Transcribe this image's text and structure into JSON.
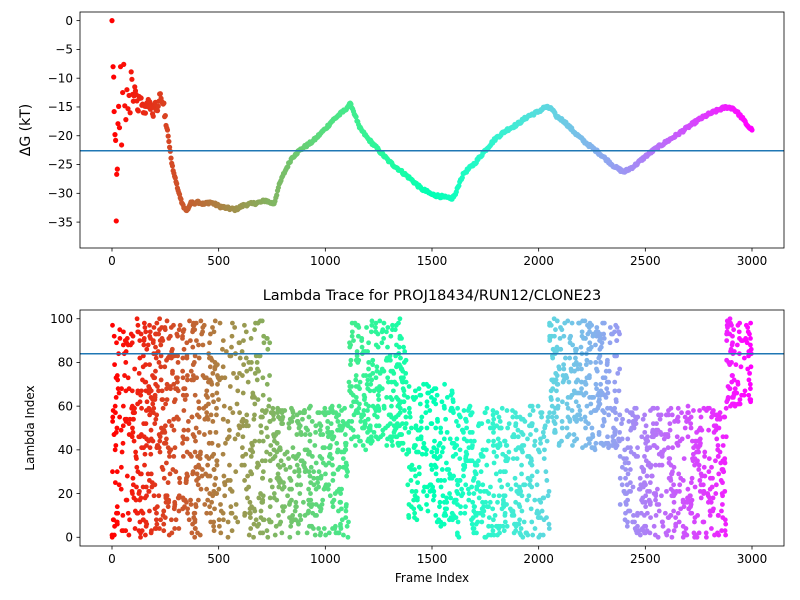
{
  "chart_data": [
    {
      "type": "scatter",
      "title": "",
      "xlabel": "",
      "ylabel": "ΔG (kT)",
      "xlim": [
        -150,
        3150
      ],
      "ylim": [
        -39.5,
        1.5
      ],
      "xticks": [
        0,
        500,
        1000,
        1500,
        2000,
        2500,
        3000
      ],
      "yticks": [
        0,
        -5,
        -10,
        -15,
        -20,
        -25,
        -30,
        -35
      ],
      "reference_line": -22.6,
      "colormap": "rainbow (red to violet as frame index increases)",
      "series": [
        {
          "points": [
            [
              0,
              0.0
            ],
            [
              5,
              -8.0
            ],
            [
              8,
              -9.8
            ],
            [
              10,
              -15.8
            ],
            [
              14,
              -19.8
            ],
            [
              17,
              -20.8
            ],
            [
              20,
              -34.8
            ],
            [
              22,
              -26.7
            ],
            [
              25,
              -25.8
            ],
            [
              28,
              -17.9
            ],
            [
              31,
              -14.9
            ],
            [
              35,
              -18.6
            ],
            [
              40,
              -8.0
            ],
            [
              45,
              -21.6
            ],
            [
              50,
              -12.5
            ],
            [
              55,
              -7.6
            ],
            [
              60,
              -14.8
            ],
            [
              65,
              -17.2
            ],
            [
              70,
              -12.0
            ],
            [
              75,
              -15.3
            ],
            [
              80,
              -13.0
            ],
            [
              85,
              -16.0
            ],
            [
              90,
              -8.9
            ],
            [
              100,
              -14.0
            ],
            [
              110,
              -12.2
            ],
            [
              120,
              -15.5
            ],
            [
              130,
              -13.5
            ],
            [
              140,
              -14.7
            ],
            [
              150,
              -16.0
            ],
            [
              160,
              -14.9
            ],
            [
              170,
              -13.7
            ],
            [
              180,
              -15.4
            ],
            [
              190,
              -16.2
            ],
            [
              200,
              -14.4
            ],
            [
              210,
              -15.6
            ],
            [
              220,
              -14.0
            ],
            [
              230,
              -13.5
            ],
            [
              240,
              -14.5
            ],
            [
              250,
              -16.5
            ],
            [
              260,
              -19.0
            ],
            [
              270,
              -22.0
            ],
            [
              280,
              -24.8
            ],
            [
              290,
              -26.5
            ],
            [
              300,
              -28.0
            ],
            [
              310,
              -29.5
            ],
            [
              320,
              -30.8
            ],
            [
              330,
              -31.8
            ],
            [
              340,
              -32.6
            ],
            [
              350,
              -33.0
            ],
            [
              360,
              -32.4
            ],
            [
              370,
              -31.5
            ],
            [
              380,
              -31.8
            ],
            [
              400,
              -31.4
            ],
            [
              430,
              -31.9
            ],
            [
              460,
              -31.5
            ],
            [
              500,
              -32.2
            ],
            [
              540,
              -32.6
            ],
            [
              580,
              -32.8
            ],
            [
              620,
              -32.0
            ],
            [
              660,
              -31.8
            ],
            [
              700,
              -31.5
            ],
            [
              720,
              -31.2
            ],
            [
              740,
              -31.6
            ],
            [
              760,
              -31.8
            ],
            [
              780,
              -29.0
            ],
            [
              800,
              -27.0
            ],
            [
              820,
              -25.5
            ],
            [
              840,
              -24.0
            ],
            [
              860,
              -23.2
            ],
            [
              880,
              -22.5
            ],
            [
              900,
              -22.0
            ],
            [
              920,
              -21.5
            ],
            [
              940,
              -21.0
            ],
            [
              960,
              -20.3
            ],
            [
              980,
              -19.5
            ],
            [
              1000,
              -18.8
            ],
            [
              1030,
              -17.5
            ],
            [
              1060,
              -16.5
            ],
            [
              1090,
              -15.6
            ],
            [
              1110,
              -14.7
            ],
            [
              1120,
              -14.5
            ],
            [
              1140,
              -16.5
            ],
            [
              1160,
              -18.6
            ],
            [
              1200,
              -20.5
            ],
            [
              1250,
              -22.5
            ],
            [
              1300,
              -24.5
            ],
            [
              1350,
              -26.0
            ],
            [
              1400,
              -27.5
            ],
            [
              1450,
              -29.2
            ],
            [
              1500,
              -30.2
            ],
            [
              1550,
              -30.6
            ],
            [
              1590,
              -31.0
            ],
            [
              1610,
              -30.2
            ],
            [
              1630,
              -28.0
            ],
            [
              1650,
              -26.5
            ],
            [
              1700,
              -24.8
            ],
            [
              1750,
              -22.5
            ],
            [
              1800,
              -20.4
            ],
            [
              1850,
              -19.0
            ],
            [
              1900,
              -18.0
            ],
            [
              1950,
              -16.6
            ],
            [
              2000,
              -15.8
            ],
            [
              2030,
              -15.0
            ],
            [
              2060,
              -15.3
            ],
            [
              2080,
              -16.5
            ],
            [
              2120,
              -17.5
            ],
            [
              2170,
              -19.5
            ],
            [
              2220,
              -21.2
            ],
            [
              2270,
              -22.6
            ],
            [
              2320,
              -24.2
            ],
            [
              2360,
              -25.5
            ],
            [
              2400,
              -26.3
            ],
            [
              2450,
              -25.2
            ],
            [
              2500,
              -23.6
            ],
            [
              2550,
              -22.2
            ],
            [
              2600,
              -21.0
            ],
            [
              2650,
              -19.8
            ],
            [
              2700,
              -18.5
            ],
            [
              2750,
              -17.2
            ],
            [
              2800,
              -16.2
            ],
            [
              2850,
              -15.4
            ],
            [
              2880,
              -15.0
            ],
            [
              2910,
              -15.2
            ],
            [
              2930,
              -15.9
            ],
            [
              2960,
              -17.2
            ],
            [
              2980,
              -18.3
            ],
            [
              3000,
              -19.0
            ]
          ]
        }
      ]
    },
    {
      "type": "scatter",
      "title": "Lambda Trace for PROJ18434/RUN12/CLONE23",
      "xlabel": "Frame Index",
      "ylabel": "Lambda Index",
      "xlim": [
        -150,
        3150
      ],
      "ylim": [
        -4,
        104
      ],
      "xticks": [
        0,
        500,
        1000,
        1500,
        2000,
        2500,
        3000
      ],
      "yticks": [
        0,
        20,
        40,
        60,
        80,
        100
      ],
      "reference_line": 84,
      "colormap": "rainbow (red to violet as frame index increases)",
      "series": [
        {
          "segments": [
            {
              "x_range": [
                0,
                90
              ],
              "y_range": [
                0,
                100
              ],
              "count": 80
            },
            {
              "x_range": [
                90,
                200
              ],
              "y_range": [
                0,
                100
              ],
              "count": 140
            },
            {
              "x_range": [
                200,
                320
              ],
              "y_range": [
                0,
                100
              ],
              "count": 150
            },
            {
              "x_range": [
                330,
                500
              ],
              "y_range": [
                0,
                100
              ],
              "count": 200
            },
            {
              "x_range": [
                500,
                740
              ],
              "y_range": [
                0,
                100
              ],
              "count": 200
            },
            {
              "x_range": [
                740,
                1110
              ],
              "y_range": [
                0,
                60
              ],
              "count": 330
            },
            {
              "x_range": [
                1110,
                1380
              ],
              "y_range": [
                40,
                100
              ],
              "count": 260
            },
            {
              "x_range": [
                1380,
                1600
              ],
              "y_range": [
                5,
                70
              ],
              "count": 180
            },
            {
              "x_range": [
                1600,
                2050
              ],
              "y_range": [
                0,
                60
              ],
              "count": 360
            },
            {
              "x_range": [
                2050,
                2380
              ],
              "y_range": [
                40,
                100
              ],
              "count": 300
            },
            {
              "x_range": [
                2380,
                2880
              ],
              "y_range": [
                0,
                60
              ],
              "count": 420
            },
            {
              "x_range": [
                2880,
                3000
              ],
              "y_range": [
                60,
                100
              ],
              "count": 90
            }
          ]
        }
      ]
    }
  ]
}
